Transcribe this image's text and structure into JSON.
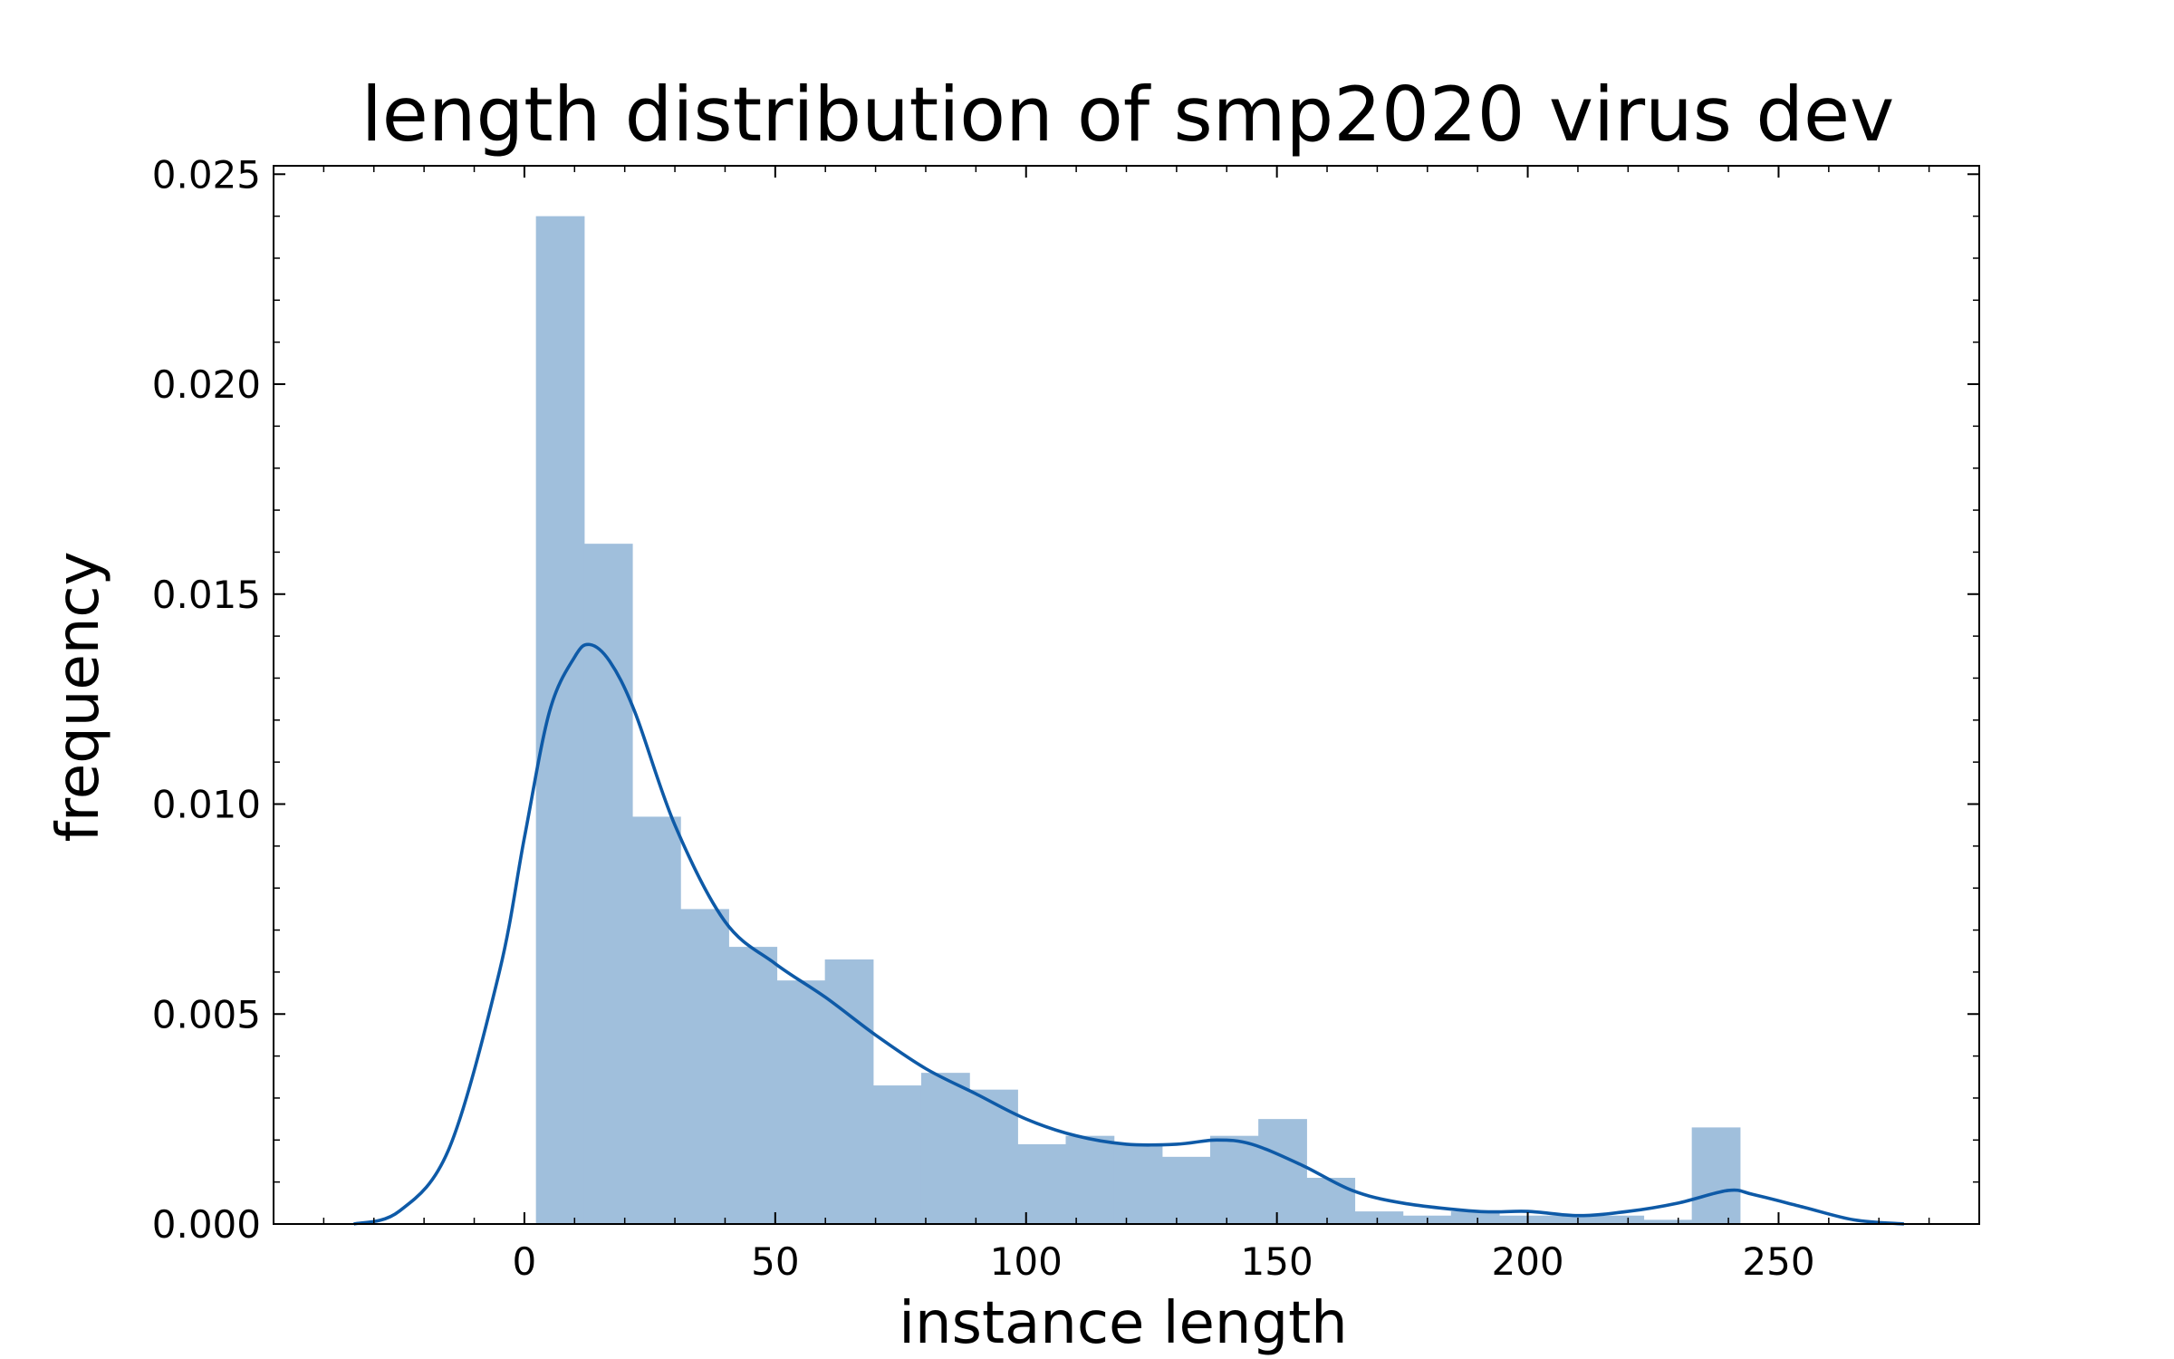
{
  "chart_data": {
    "type": "bar",
    "title": "length distribution of smp2020 virus dev",
    "xlabel": "instance length",
    "ylabel": "frequency",
    "xlim": [
      -50,
      290
    ],
    "ylim": [
      0,
      0.0252
    ],
    "xticks": [
      0,
      50,
      100,
      150,
      200,
      250
    ],
    "yticks": [
      0.0,
      0.005,
      0.01,
      0.015,
      0.02,
      0.025
    ],
    "ytick_labels": [
      "0.000",
      "0.005",
      "0.010",
      "0.015",
      "0.020",
      "0.025"
    ],
    "grid": false,
    "histogram": {
      "color": "#a0bfdc",
      "bins": [
        {
          "start": 2.3,
          "end": 11.9,
          "value": 0.024
        },
        {
          "start": 11.9,
          "end": 21.5,
          "value": 0.0162
        },
        {
          "start": 21.5,
          "end": 31.1,
          "value": 0.0097
        },
        {
          "start": 31.1,
          "end": 40.7,
          "value": 0.0075
        },
        {
          "start": 40.7,
          "end": 50.3,
          "value": 0.0066
        },
        {
          "start": 50.3,
          "end": 59.9,
          "value": 0.0058
        },
        {
          "start": 59.9,
          "end": 69.5,
          "value": 0.0063
        },
        {
          "start": 69.5,
          "end": 79.1,
          "value": 0.0033
        },
        {
          "start": 79.1,
          "end": 88.7,
          "value": 0.0036
        },
        {
          "start": 88.7,
          "end": 98.3,
          "value": 0.0032
        },
        {
          "start": 98.3,
          "end": 107.9,
          "value": 0.0019
        },
        {
          "start": 107.9,
          "end": 117.5,
          "value": 0.0021
        },
        {
          "start": 117.5,
          "end": 127.1,
          "value": 0.0019
        },
        {
          "start": 127.1,
          "end": 136.7,
          "value": 0.0016
        },
        {
          "start": 136.7,
          "end": 146.3,
          "value": 0.0021
        },
        {
          "start": 146.3,
          "end": 155.9,
          "value": 0.0025
        },
        {
          "start": 155.9,
          "end": 165.5,
          "value": 0.0011
        },
        {
          "start": 165.5,
          "end": 175.1,
          "value": 0.0003
        },
        {
          "start": 175.1,
          "end": 184.7,
          "value": 0.0002
        },
        {
          "start": 184.7,
          "end": 194.3,
          "value": 0.0003
        },
        {
          "start": 194.3,
          "end": 203.9,
          "value": 0.0002
        },
        {
          "start": 203.9,
          "end": 213.5,
          "value": 0.0002
        },
        {
          "start": 213.5,
          "end": 223.1,
          "value": 0.0002
        },
        {
          "start": 223.1,
          "end": 232.7,
          "value": 0.0001
        },
        {
          "start": 232.7,
          "end": 242.3,
          "value": 0.0023
        }
      ]
    },
    "kde": {
      "color": "#0e5aa7",
      "x": [
        -34,
        -25,
        -15,
        -5,
        0,
        5,
        10,
        13,
        17,
        22,
        30,
        40,
        50,
        60,
        70,
        80,
        90,
        100,
        110,
        120,
        130,
        138,
        145,
        155,
        165,
        175,
        190,
        200,
        210,
        220,
        230,
        240,
        245,
        255,
        265,
        275
      ],
      "y": [
        0.0,
        0.0003,
        0.0018,
        0.006,
        0.0092,
        0.0122,
        0.0135,
        0.0138,
        0.0134,
        0.0122,
        0.0095,
        0.0072,
        0.0062,
        0.0054,
        0.0045,
        0.0037,
        0.0031,
        0.0025,
        0.0021,
        0.0019,
        0.0019,
        0.002,
        0.0019,
        0.0014,
        0.0008,
        0.0005,
        0.0003,
        0.0003,
        0.0002,
        0.0003,
        0.0005,
        0.0008,
        0.0007,
        0.0004,
        0.0001,
        0.0
      ]
    }
  }
}
